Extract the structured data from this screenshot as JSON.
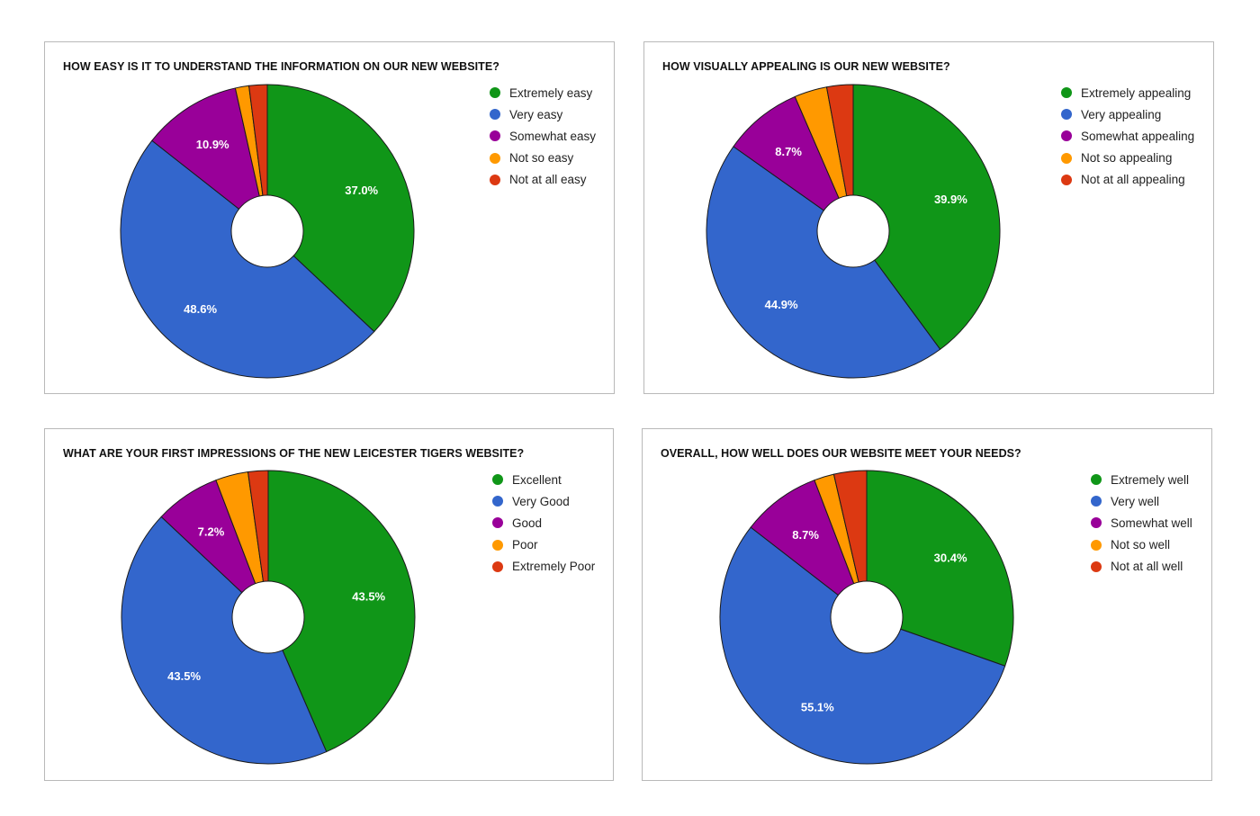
{
  "chart_data": [
    {
      "type": "pie",
      "title": "HOW EASY IS IT TO UNDERSTAND THE INFORMATION ON OUR NEW WEBSITE?",
      "categories": [
        "Extremely easy",
        "Very easy",
        "Somewhat easy",
        "Not so easy",
        "Not at all easy"
      ],
      "values": [
        37.0,
        48.6,
        10.9,
        1.5,
        2.0
      ],
      "labels": [
        "37.0%",
        "48.6%",
        "10.9%",
        "",
        ""
      ],
      "colors": [
        "#109618",
        "#3366CC",
        "#990099",
        "#FF9900",
        "#DC3912"
      ],
      "legend_position": "right"
    },
    {
      "type": "pie",
      "title": "HOW VISUALLY APPEALING IS OUR NEW WEBSITE?",
      "categories": [
        "Extremely appealing",
        "Very appealing",
        "Somewhat appealing",
        "Not so appealing",
        "Not at all appealing"
      ],
      "values": [
        39.9,
        44.9,
        8.7,
        3.6,
        2.9
      ],
      "labels": [
        "39.9%",
        "44.9%",
        "8.7%",
        "",
        ""
      ],
      "colors": [
        "#109618",
        "#3366CC",
        "#990099",
        "#FF9900",
        "#DC3912"
      ],
      "legend_position": "right"
    },
    {
      "type": "pie",
      "title": "WHAT ARE YOUR FIRST IMPRESSIONS OF THE NEW LEICESTER TIGERS WEBSITE?",
      "categories": [
        "Excellent",
        "Very Good",
        "Good",
        "Poor",
        "Extremely Poor"
      ],
      "values": [
        43.5,
        43.5,
        7.2,
        3.6,
        2.2
      ],
      "labels": [
        "43.5%",
        "43.5%",
        "7.2%",
        "",
        ""
      ],
      "colors": [
        "#109618",
        "#3366CC",
        "#990099",
        "#FF9900",
        "#DC3912"
      ],
      "legend_position": "right"
    },
    {
      "type": "pie",
      "title": "OVERALL, HOW WELL DOES OUR WEBSITE MEET YOUR NEEDS?",
      "categories": [
        "Extremely well",
        "Very well",
        "Somewhat well",
        "Not so well",
        "Not at all well"
      ],
      "values": [
        30.4,
        55.1,
        8.7,
        2.2,
        3.6
      ],
      "labels": [
        "30.4%",
        "55.1%",
        "8.7%",
        "",
        ""
      ],
      "colors": [
        "#109618",
        "#3366CC",
        "#990099",
        "#FF9900",
        "#DC3912"
      ],
      "legend_position": "right"
    }
  ]
}
